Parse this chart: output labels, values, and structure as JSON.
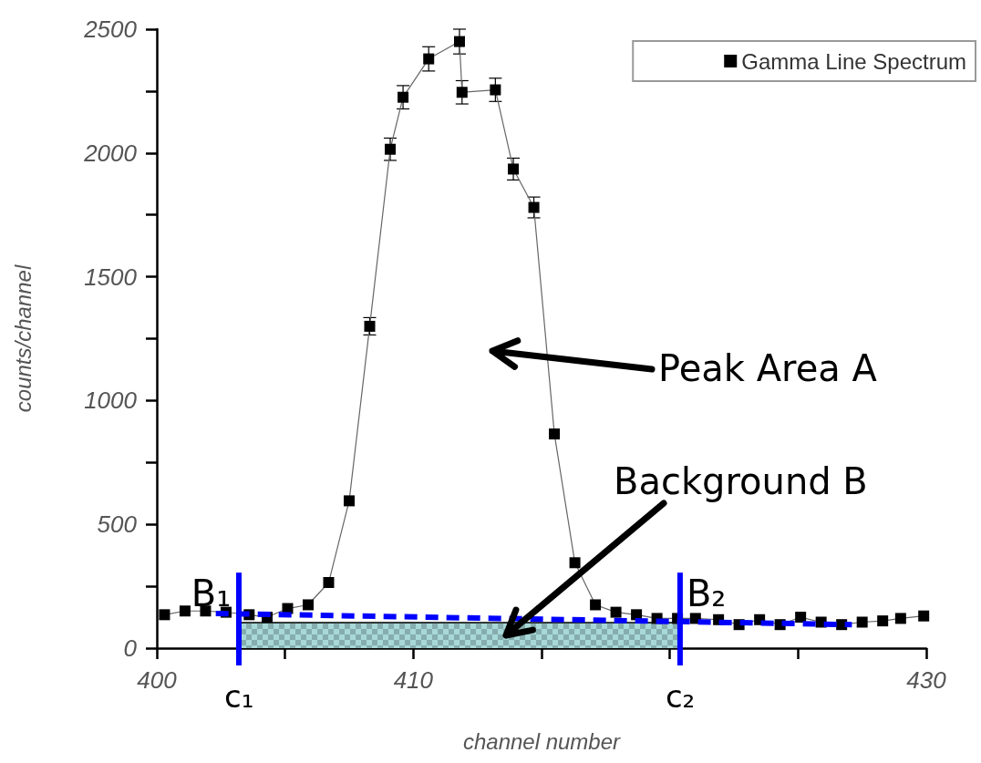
{
  "chart_data": {
    "type": "line",
    "xlabel": "channel number",
    "ylabel": "counts/channel",
    "xlim": [
      400,
      430
    ],
    "xticks": [
      400,
      {
        "value": 405,
        "label": null
      },
      410,
      {
        "value": 415,
        "label": null
      },
      {
        "value": 420,
        "label": null
      },
      {
        "value": 425,
        "label": null
      },
      430
    ],
    "ylim": [
      0,
      2500
    ],
    "yticks": [
      0,
      {
        "value": 250,
        "label": null
      },
      500,
      {
        "value": 750,
        "label": null
      },
      1000,
      {
        "value": 1250,
        "label": null
      },
      1500,
      {
        "value": 1750,
        "label": null
      },
      2000,
      {
        "value": 2250,
        "label": null
      },
      2500
    ],
    "legend": "top right",
    "grid": false,
    "series": [
      {
        "name": "Gamma Line Spectrum",
        "color": "#000000",
        "marker": "square",
        "x": [
          400.3,
          401.1,
          401.9,
          402.7,
          403.6,
          404.3,
          405.1,
          405.9,
          406.7,
          407.5,
          408.3,
          409.1,
          409.6,
          410.6,
          411.8,
          411.9,
          413.2,
          413.9,
          414.7,
          415.5,
          416.3,
          417.1,
          417.9,
          418.7,
          419.5,
          420.3,
          421.0,
          421.9,
          422.7,
          423.5,
          424.3,
          425.1,
          425.9,
          426.7,
          427.5,
          428.3,
          429.0,
          429.9
        ],
        "values": [
          135,
          150,
          150,
          145,
          135,
          125,
          160,
          175,
          265,
          595,
          1300,
          2015,
          2225,
          2380,
          2450,
          2245,
          2255,
          1935,
          1780,
          865,
          345,
          175,
          145,
          135,
          120,
          120,
          120,
          115,
          95,
          115,
          95,
          125,
          105,
          95,
          105,
          110,
          120,
          130
        ],
        "errors": [
          null,
          null,
          null,
          null,
          null,
          null,
          null,
          null,
          null,
          null,
          35,
          45,
          47,
          49,
          50,
          47,
          47,
          44,
          42,
          null,
          null,
          null,
          null,
          null,
          null,
          null,
          null,
          null,
          null,
          null,
          null,
          null,
          null,
          null,
          null,
          null,
          null,
          null
        ]
      },
      {
        "type": "line",
        "color": "#0000ff",
        "marker": "none",
        "line_style": "dashed",
        "x": [
          402.3,
          427.1
        ],
        "values": [
          140,
          95
        ]
      },
      {
        "type": "area",
        "color": "#a8d8d8",
        "x": [
          403.2,
          420.3
        ],
        "values": [
          103,
          103
        ]
      }
    ],
    "ref_lines": [
      {
        "axis": "x",
        "value": 403.2,
        "label": "c₁",
        "color": "#0000ff"
      },
      {
        "axis": "x",
        "value": 420.4,
        "label": "c₂",
        "color": "#0000ff"
      }
    ],
    "annotations": [
      "Peak Area A",
      "Background B",
      {
        "text": "B₁",
        "x": 402.3,
        "y": 140
      },
      {
        "text": "B₂",
        "x": 420.4,
        "y": 120
      }
    ]
  }
}
